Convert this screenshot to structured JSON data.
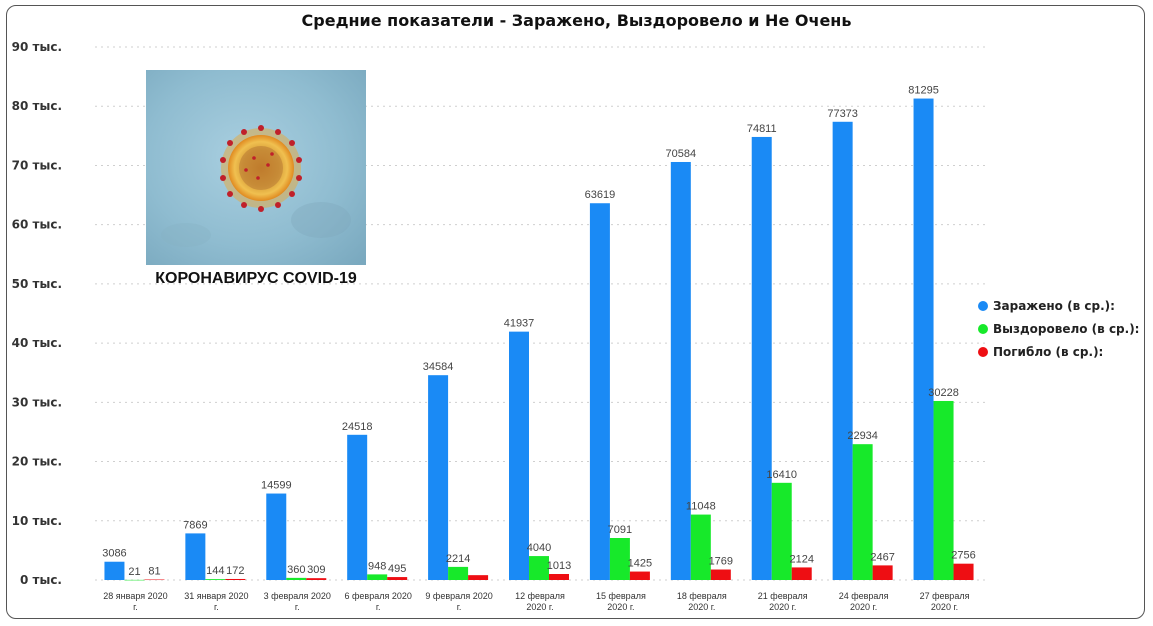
{
  "chart_data": {
    "type": "bar",
    "title": "Средние показатели - Заражено, Выздоровело и Не Очень",
    "categories": [
      [
        "28 января 2020",
        "г."
      ],
      [
        "31 января 2020",
        "г."
      ],
      [
        "3 февраля 2020",
        "г."
      ],
      [
        "6 февраля 2020",
        "г."
      ],
      [
        "9 февраля 2020",
        "г."
      ],
      [
        "12 февраля",
        "2020 г."
      ],
      [
        "15 февраля",
        "2020 г."
      ],
      [
        "18 февраля",
        "2020 г."
      ],
      [
        "21 февраля",
        "2020 г."
      ],
      [
        "24 февраля",
        "2020 г."
      ],
      [
        "27 февраля",
        "2020 г."
      ]
    ],
    "series": [
      {
        "name": "Заражено (в ср.):",
        "color": "#1a8af5",
        "values": [
          3086,
          7869,
          14599,
          24518,
          34584,
          41937,
          63619,
          70584,
          74811,
          77373,
          81295
        ]
      },
      {
        "name": "Выздоровело (в ср.):",
        "color": "#17e92a",
        "values": [
          21,
          144,
          360,
          948,
          2214,
          4040,
          7091,
          11048,
          16410,
          22934,
          30228
        ]
      },
      {
        "name": "Погибло (в ср.):",
        "color": "#ee0e13",
        "values": [
          81,
          172,
          309,
          495,
          817,
          1013,
          1425,
          1769,
          2124,
          2467,
          2756
        ]
      }
    ],
    "data_labels": [
      [
        "3086",
        "7869",
        "14599",
        "24518",
        "34584",
        "41937",
        "63619",
        "70584",
        "74811",
        "77373",
        "81295"
      ],
      [
        "21",
        "144",
        "360",
        "948",
        "2214",
        "4040",
        "7091",
        "11048",
        "16410",
        "22934",
        "30228"
      ],
      [
        "81",
        "172",
        "309",
        "495",
        "",
        "1013",
        "1425",
        "1769",
        "2124",
        "2467",
        "2756"
      ]
    ],
    "yticks": [
      0,
      10000,
      20000,
      30000,
      40000,
      50000,
      60000,
      70000,
      80000,
      90000
    ],
    "ytick_labels": [
      "0 тыс.",
      "10 тыс.",
      "20 тыс.",
      "30 тыс.",
      "40 тыс.",
      "50 тыс.",
      "60 тыс.",
      "70 тыс.",
      "80 тыс.",
      "90 тыс."
    ],
    "ylim": [
      0,
      90000
    ],
    "grid": true,
    "legend_position": "right"
  },
  "image": {
    "caption": "КОРОНАВИРУС COVID-19",
    "icon": "coronavirus-micrograph"
  }
}
